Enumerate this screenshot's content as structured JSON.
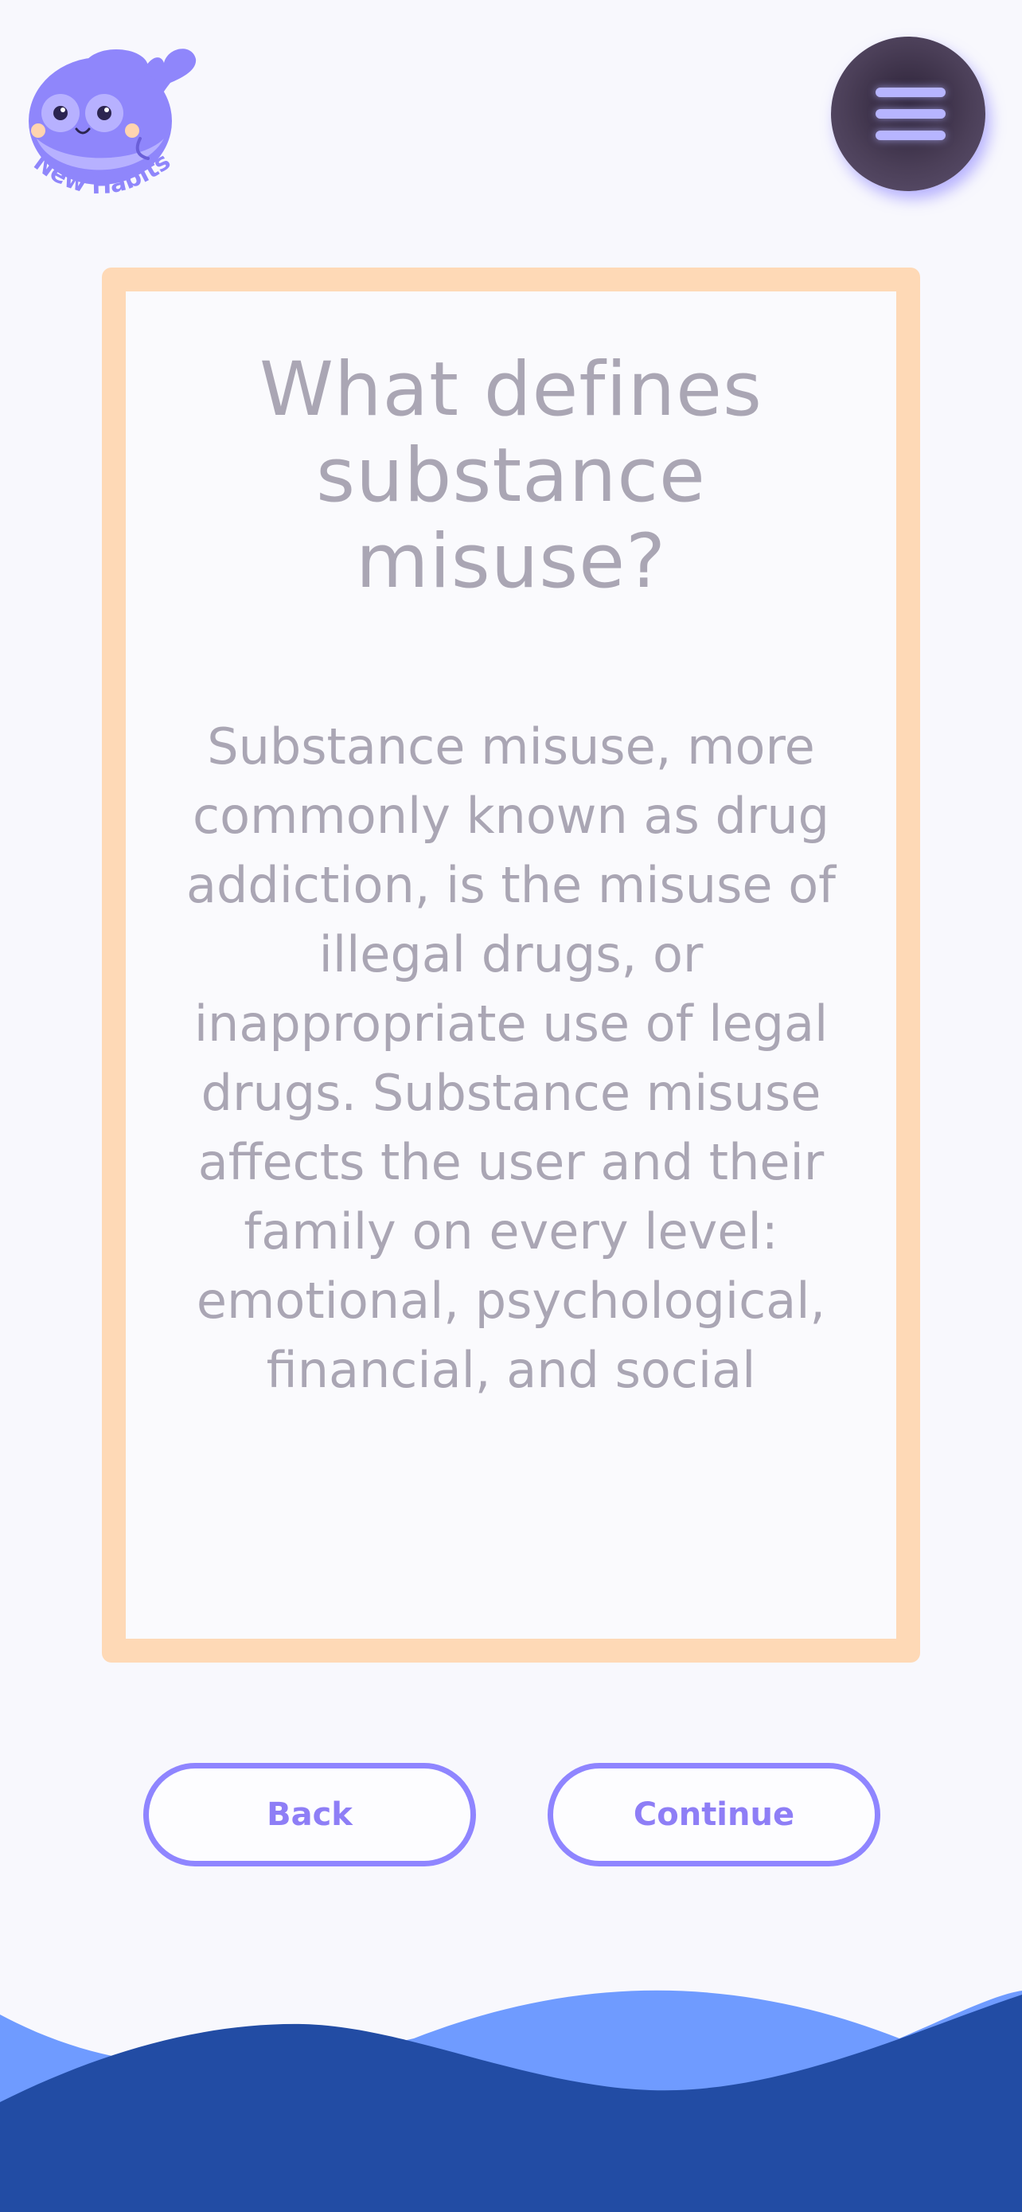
{
  "app": {
    "logo_text": "New Habits",
    "logo_icon": "whale-mascot-icon",
    "menu_icon": "hamburger-menu-icon"
  },
  "card": {
    "title": "What defines substance misuse?",
    "body": "Substance misuse, more commonly known as drug addiction, is the misuse of illegal drugs, or inappropriate use of legal drugs. Substance misuse affects the user and their family on every level: emotional, psychological, financial, and social"
  },
  "buttons": {
    "back_label": "Back",
    "continue_label": "Continue"
  },
  "colors": {
    "background": "#f8f8fd",
    "card_border": "#fed9b6",
    "text": "#aaa6b4",
    "accent": "#8f85ff",
    "wave_light": "#6f9bff",
    "wave_dark": "#224ca4"
  }
}
